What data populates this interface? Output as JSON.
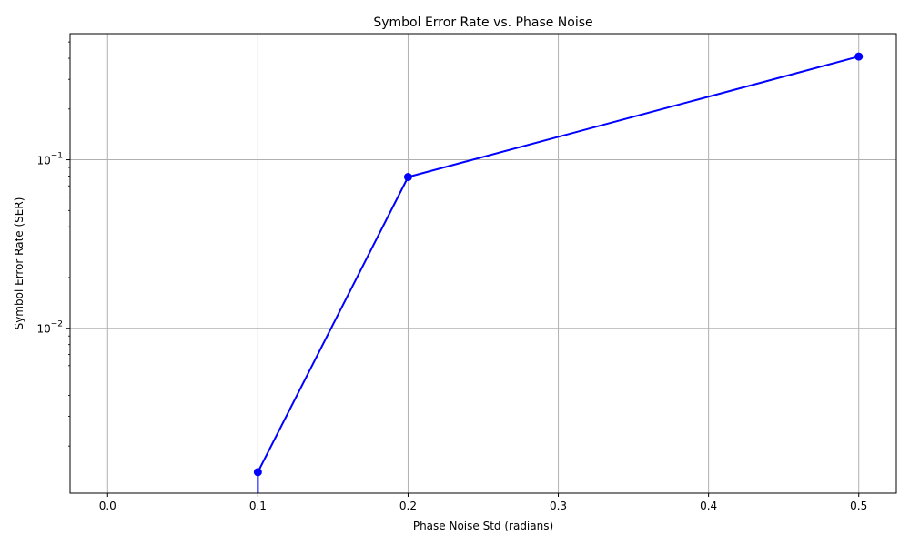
{
  "chart_data": {
    "type": "line",
    "title": "Symbol Error Rate vs. Phase Noise",
    "xlabel": "Phase Noise Std (radians)",
    "ylabel": "Symbol Error Rate (SER)",
    "yscale": "log",
    "grid": true,
    "xlim": [
      -0.025,
      0.525
    ],
    "ylim": [
      0.00105,
      0.56
    ],
    "xticks": [
      0.0,
      0.1,
      0.2,
      0.3,
      0.4,
      0.5
    ],
    "xtick_labels": [
      "0.0",
      "0.1",
      "0.2",
      "0.3",
      "0.4",
      "0.5"
    ],
    "yticks": [
      0.01,
      0.1
    ],
    "ytick_labels": [
      {
        "base": "10",
        "exp": "−2"
      },
      {
        "base": "10",
        "exp": "−1"
      }
    ],
    "series": [
      {
        "color": "#0000ff",
        "marker": "circle",
        "x": [
          0.0,
          0.1,
          0.2,
          0.5
        ],
        "y": [
          0.0,
          0.0014,
          0.079,
          0.41
        ]
      }
    ]
  }
}
